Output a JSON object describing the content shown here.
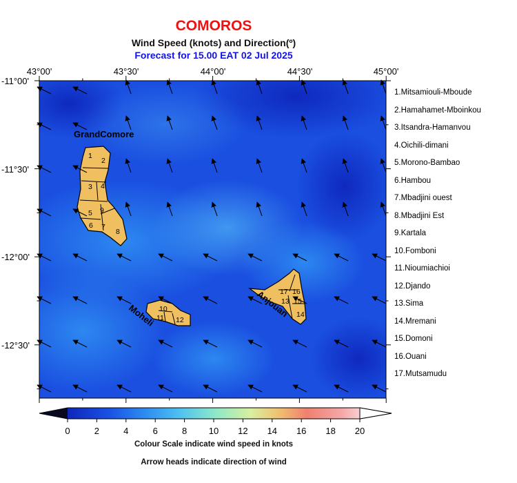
{
  "title": "COMOROS",
  "subtitle": "Wind Speed (knots) and Direction(º)",
  "forecast": "Forecast for  15.00 EAT 02 Jul 2025",
  "lon_labels": [
    "43°00'",
    "43°30'",
    "44°00'",
    "44°30'",
    "45°00'"
  ],
  "lat_labels": [
    "-11°00'",
    "-11°30'",
    "-12°00'",
    "-12°30'"
  ],
  "islands": {
    "grand_comore": "GrandComore",
    "moheli": "Moheli",
    "anjouan": "Anjouan"
  },
  "regions": [
    "1.Mitsamiouli-Mboude",
    "2.Hamahamet-Mboinkou",
    "3.Itsandra-Hamanvou",
    "4.Oichili-dimani",
    "5.Morono-Bambao",
    "6.Hambou",
    "7.Mbadjini ouest",
    "8.Mbadjini Est",
    "9.Kartala",
    "10.Fomboni",
    "11.Nioumiachioi",
    "12.Djando",
    "13.Sima",
    "14.Mremani",
    "15.Domoni",
    "16.Ouani",
    "17.Mutsamudu"
  ],
  "district_numbers": [
    "1",
    "2",
    "3",
    "4",
    "5",
    "6",
    "7",
    "8",
    "9",
    "10",
    "11",
    "12",
    "13",
    "14",
    "15",
    "16",
    "17"
  ],
  "colorbar": {
    "ticks": [
      "0",
      "2",
      "4",
      "6",
      "8",
      "10",
      "12",
      "14",
      "16",
      "18",
      "20"
    ],
    "min": 0,
    "max": 20,
    "colors": [
      "#08081e",
      "#0b1fb4",
      "#1a52e6",
      "#2d8cf0",
      "#4fc2f0",
      "#8ee8c8",
      "#d8f0a0",
      "#f0c070",
      "#f08070",
      "#f4a8a8",
      "#fae6ea",
      "#ffffff"
    ]
  },
  "note_scale": "Colour Scale indicate wind speed in knots",
  "note_arrows": "Arrow heads indicate direction of wind",
  "colors": {
    "title": "#ee1111",
    "forecast": "#1111ee",
    "land": "#f0c060",
    "sea_base": "#1a4fe0"
  }
}
